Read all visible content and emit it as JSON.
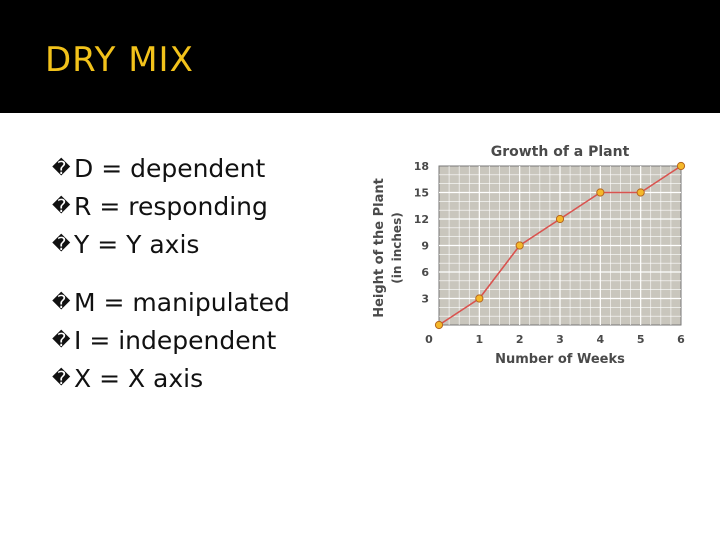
{
  "slide": {
    "title": "DRY MIX",
    "bullet_glyph": "�",
    "group1": [
      {
        "text": "D = dependent"
      },
      {
        "text": "R = responding"
      },
      {
        "text": "Y = Y axis"
      }
    ],
    "group2": [
      {
        "text": "M = manipulated"
      },
      {
        "text": "I = independent"
      },
      {
        "text": "X = X axis"
      }
    ]
  },
  "colors": {
    "title_bar": "#000000",
    "title_text": "#f2c21b",
    "plot_bg": "#c9c6bd",
    "grid": "#ffffff",
    "line": "#d9534f",
    "marker_fill": "#f5b82a",
    "marker_stroke": "#b5651d"
  },
  "chart_data": {
    "type": "line",
    "title": "Growth of a Plant",
    "xlabel": "Number of Weeks",
    "ylabel": "Height of the Plant",
    "ylabel_sub": "(in inches)",
    "x": [
      0,
      1,
      2,
      3,
      4,
      5,
      6
    ],
    "values": [
      0,
      3,
      9,
      12,
      15,
      15,
      18
    ],
    "x_ticks": [
      "0",
      "1",
      "2",
      "3",
      "4",
      "5",
      "6"
    ],
    "y_ticks": [
      "3",
      "6",
      "9",
      "12",
      "15",
      "18"
    ],
    "xlim": [
      0,
      6
    ],
    "ylim": [
      0,
      18
    ],
    "grid": true
  }
}
